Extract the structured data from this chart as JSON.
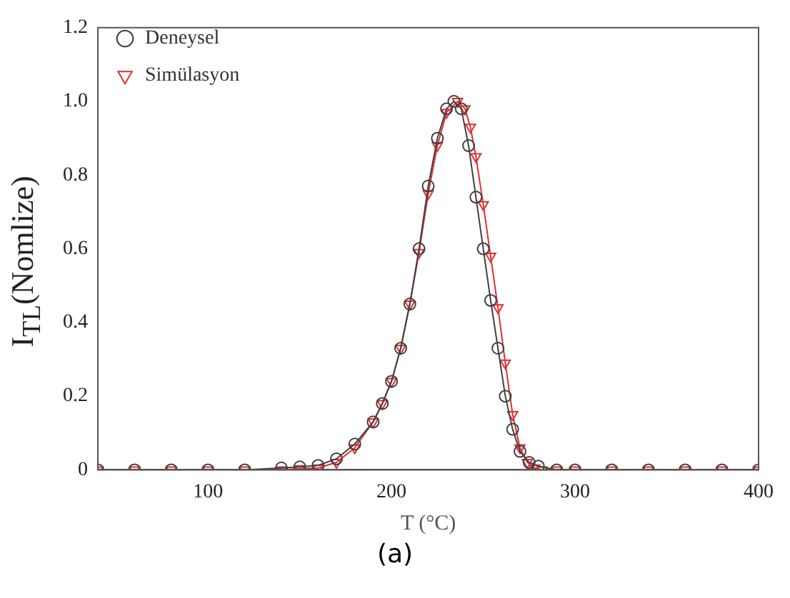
{
  "chart_data": {
    "type": "line",
    "xlabel": "T (°C)",
    "ylabel": "I$_{TL}$(Nomlize)",
    "annotations": [
      "(a)"
    ],
    "xlim": [
      40,
      400
    ],
    "ylim": [
      0,
      1.2
    ],
    "xticks": [
      100,
      200,
      300,
      400
    ],
    "yticks": [
      0,
      0.2,
      0.4,
      0.6,
      0.8,
      {
        "value": 1,
        "label": "1.0"
      },
      1.2
    ],
    "grid": false,
    "legend": "top left",
    "line_style": "solid",
    "series": [
      {
        "name": "Deneysel",
        "color": "#404040",
        "marker": "circle",
        "x": [
          40,
          60,
          80,
          100,
          120,
          140,
          150,
          160,
          170,
          180,
          190,
          195,
          200,
          205,
          210,
          215,
          220,
          225,
          230,
          234,
          238,
          242,
          246,
          250,
          254,
          258,
          262,
          266,
          270,
          275,
          280,
          290,
          300,
          320,
          340,
          360,
          380,
          400
        ],
        "values": [
          0,
          0,
          0,
          0,
          0,
          0.005,
          0.008,
          0.012,
          0.03,
          0.07,
          0.13,
          0.18,
          0.24,
          0.33,
          0.45,
          0.6,
          0.77,
          0.9,
          0.98,
          1.0,
          0.98,
          0.88,
          0.74,
          0.6,
          0.46,
          0.33,
          0.2,
          0.11,
          0.05,
          0.02,
          0.01,
          0,
          0,
          0,
          0,
          0,
          0,
          0
        ]
      },
      {
        "name": "Simülasyon",
        "color": "#e03030",
        "marker": "triangle",
        "x": [
          40,
          60,
          80,
          100,
          120,
          140,
          150,
          160,
          170,
          180,
          190,
          195,
          200,
          205,
          210,
          215,
          220,
          225,
          230,
          236,
          240,
          243,
          246,
          250,
          254,
          258,
          262,
          266,
          270,
          274,
          278,
          282,
          290,
          300,
          320,
          340,
          360,
          380,
          400
        ],
        "values": [
          0,
          0,
          0,
          0,
          0,
          0,
          0.003,
          0.005,
          0.02,
          0.06,
          0.13,
          0.18,
          0.24,
          0.33,
          0.45,
          0.59,
          0.75,
          0.88,
          0.97,
          1.0,
          0.98,
          0.93,
          0.85,
          0.72,
          0.58,
          0.44,
          0.29,
          0.15,
          0.06,
          0.02,
          0.005,
          0,
          0,
          0,
          0,
          0,
          0,
          0,
          0
        ]
      }
    ]
  }
}
